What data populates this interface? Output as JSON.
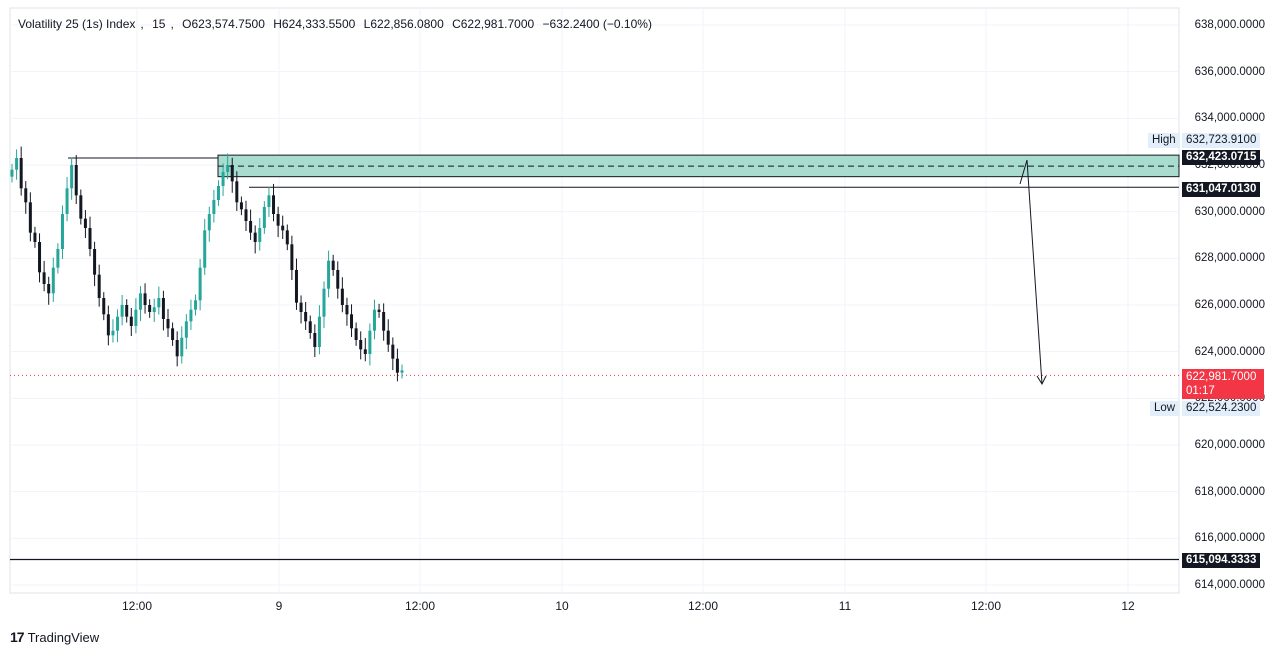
{
  "header": {
    "symbol": "Volatility 25 (1s) Index",
    "interval": "15",
    "open": "O623,574.7500",
    "high": "H624,333.5500",
    "low": "L622,856.0800",
    "close": "C622,981.7000",
    "change": "−632.2400 (−0.10%)"
  },
  "brand": {
    "logo_text": "17",
    "name": "TradingView"
  },
  "colors": {
    "up": "#26a69a",
    "down": "#131722",
    "zone_fill": "#a8dccf",
    "last_price": "#f23645",
    "grid": "#f0f3fa",
    "line": "#131722"
  },
  "chart_data": {
    "type": "candlestick",
    "title": "",
    "xlabel": "",
    "ylabel": "",
    "ylim": [
      613000,
      638500
    ],
    "y_ticks": [
      "638,000.0000",
      "636,000.0000",
      "634,000.0000",
      "632,000.0000",
      "630,000.0000",
      "628,000.0000",
      "626,000.0000",
      "624,000.0000",
      "622,000.0000",
      "620,000.0000",
      "618,000.0000",
      "616,000.0000",
      "614,000.0000"
    ],
    "y_tick_values": [
      638000,
      636000,
      634000,
      632000,
      630000,
      628000,
      626000,
      624000,
      622000,
      620000,
      618000,
      616000,
      614000
    ],
    "x_ticks": [
      "12:00",
      "9",
      "12:00",
      "10",
      "12:00",
      "11",
      "12:00",
      "12"
    ],
    "grid": true,
    "price_tags": {
      "high_label": "High",
      "high_value": "632,723.9100",
      "zone_top": "632,423.0715",
      "zone_bottom_line": "631,047.0130",
      "last_price": "622,981.7000",
      "countdown": "01:17",
      "low_label": "Low",
      "low_value": "622,524.2300",
      "support": "615,094.3333"
    },
    "levels": {
      "zone_top": 632423.0715,
      "zone_bottom": 631500,
      "zone_mid": 631950,
      "resistance": 631047.013,
      "support": 615094.3333,
      "last_price": 622981.7
    },
    "series": [
      {
        "values": [
          631800,
          632300,
          631000,
          630400,
          629100,
          628700,
          627400,
          626900,
          626500,
          627600,
          628400,
          629900,
          631000,
          632000,
          630700,
          629700,
          629300,
          628400,
          627300,
          626300,
          625600,
          624700,
          624900,
          625500,
          626000,
          625500,
          625100,
          625800,
          626500,
          626000,
          625700,
          625900,
          626300,
          625400,
          625000,
          624500,
          623800,
          624600,
          625300,
          625800,
          626200,
          627600,
          629200,
          629900,
          630500,
          631100,
          631700,
          632000,
          631300,
          630400,
          630100,
          629600,
          629100,
          628700,
          629300,
          630200,
          630700,
          629900,
          629400,
          629200,
          628600,
          627500,
          626100,
          625700,
          625300,
          624800,
          624200,
          625500,
          626700,
          627900,
          627500,
          626700,
          626000,
          625600,
          625000,
          624500,
          624100,
          623900,
          624900,
          625800,
          625700,
          624900,
          624300,
          623700,
          623100,
          623200
        ]
      }
    ]
  }
}
